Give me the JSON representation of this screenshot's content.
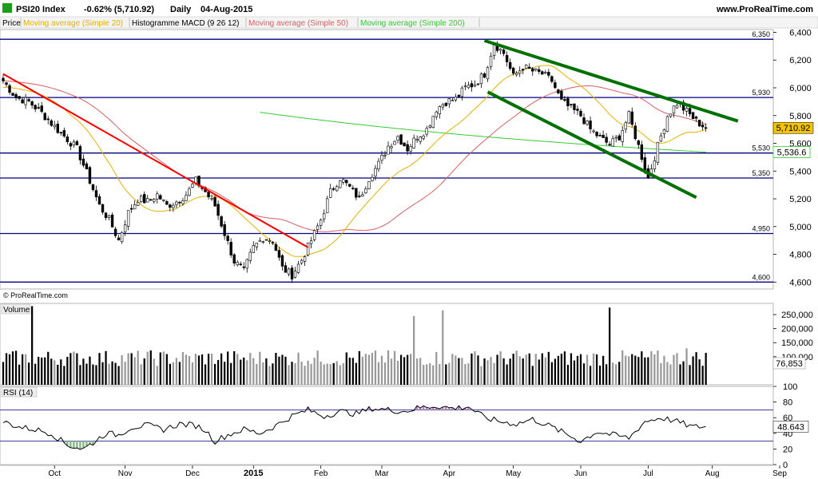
{
  "header": {
    "title": "PSI20 Index",
    "change": "-0.62% (5,710.92)",
    "period": "Daily",
    "date": "04-Aug-2015",
    "brand": "www.ProRealTime.com",
    "copyright": "© ProRealTime.com"
  },
  "indicators": [
    {
      "label": "Price",
      "color": "#000000"
    },
    {
      "label": "Moving average (Simple 20)",
      "color": "#e8b100"
    },
    {
      "label": "Histogramme MACD (9 26 12)",
      "color": "#000000"
    },
    {
      "label": "Moving average (Simple 50)",
      "color": "#d96060"
    },
    {
      "label": "Moving average (Simple 200)",
      "color": "#33cc33"
    }
  ],
  "colors": {
    "up_candle": "#ffffff",
    "down_candle": "#000000",
    "resistance_line": "#000080",
    "downtrend_line": "#ff0000",
    "channel_line": "#007000",
    "last_price_badge": "#f5c400"
  },
  "chart_data": [
    {
      "type": "candlestick",
      "panel": "price",
      "ylim": [
        4550,
        6420
      ],
      "yticks": [
        4600,
        4800,
        5000,
        5200,
        5400,
        5600,
        5800,
        6000,
        6200,
        6400
      ],
      "ytick_labels": [
        "4,600",
        "4,800",
        "5,000",
        "5,200",
        "5,400",
        "5,600",
        "5,800",
        "6,000",
        "6,200",
        "6,400"
      ],
      "x_labels": [
        "Oct",
        "Nov",
        "Dec",
        "2015",
        "Feb",
        "Mar",
        "Apr",
        "May",
        "Jun",
        "Jul",
        "Aug",
        "Sep"
      ],
      "x_label_bold": "2015",
      "last_price": 5710.92,
      "last_price_label": "5,710.92",
      "sma200_value": 5536.6,
      "sma200_label": "5,536.6",
      "close_anchors": [
        [
          0,
          6050
        ],
        [
          4,
          5930
        ],
        [
          8,
          5900
        ],
        [
          12,
          5820
        ],
        [
          16,
          5720
        ],
        [
          20,
          5630
        ],
        [
          23,
          5560
        ],
        [
          27,
          5330
        ],
        [
          30,
          5150
        ],
        [
          33,
          5050
        ],
        [
          36,
          4900
        ],
        [
          39,
          5100
        ],
        [
          42,
          5200
        ],
        [
          45,
          5180
        ],
        [
          48,
          5230
        ],
        [
          51,
          5150
        ],
        [
          54,
          5180
        ],
        [
          57,
          5230
        ],
        [
          60,
          5330
        ],
        [
          63,
          5250
        ],
        [
          66,
          5150
        ],
        [
          69,
          4950
        ],
        [
          72,
          4750
        ],
        [
          75,
          4680
        ],
        [
          78,
          4850
        ],
        [
          81,
          4920
        ],
        [
          84,
          4900
        ],
        [
          87,
          4700
        ],
        [
          90,
          4650
        ],
        [
          93,
          4760
        ],
        [
          96,
          4900
        ],
        [
          99,
          5050
        ],
        [
          102,
          5250
        ],
        [
          105,
          5350
        ],
        [
          108,
          5280
        ],
        [
          111,
          5200
        ],
        [
          114,
          5350
        ],
        [
          117,
          5450
        ],
        [
          120,
          5580
        ],
        [
          123,
          5650
        ],
        [
          126,
          5560
        ],
        [
          129,
          5650
        ],
        [
          132,
          5700
        ],
        [
          135,
          5850
        ],
        [
          138,
          5900
        ],
        [
          141,
          5920
        ],
        [
          144,
          6000
        ],
        [
          147,
          6030
        ],
        [
          150,
          6100
        ],
        [
          153,
          6320
        ],
        [
          156,
          6250
        ],
        [
          159,
          6080
        ],
        [
          162,
          6150
        ],
        [
          165,
          6120
        ],
        [
          168,
          6100
        ],
        [
          171,
          6050
        ],
        [
          174,
          5900
        ],
        [
          177,
          5850
        ],
        [
          180,
          5800
        ],
        [
          183,
          5700
        ],
        [
          186,
          5640
        ],
        [
          189,
          5590
        ],
        [
          192,
          5650
        ],
        [
          195,
          5800
        ],
        [
          198,
          5580
        ],
        [
          201,
          5350
        ],
        [
          204,
          5580
        ],
        [
          207,
          5800
        ],
        [
          210,
          5890
        ],
        [
          213,
          5830
        ],
        [
          216,
          5760
        ],
        [
          219,
          5711
        ]
      ],
      "horizontal_levels": [
        {
          "value": 6350,
          "label": "6,350"
        },
        {
          "value": 5930,
          "label": "5,930"
        },
        {
          "value": 5530,
          "label": "5,530"
        },
        {
          "value": 5350,
          "label": "5,350"
        },
        {
          "value": 4950,
          "label": "4,950"
        },
        {
          "value": 4600,
          "label": "4,600"
        }
      ],
      "trend_lines": [
        {
          "name": "downtrend",
          "from": [
            0,
            6100
          ],
          "to": [
            95,
            4850
          ]
        },
        {
          "name": "channel-upper",
          "from": [
            150,
            6340
          ],
          "to": [
            229,
            5760
          ]
        },
        {
          "name": "channel-lower",
          "from": [
            151,
            5970
          ],
          "to": [
            216,
            5210
          ]
        }
      ],
      "num_bars": 220,
      "x_domain": [
        0,
        240
      ]
    },
    {
      "type": "bar",
      "panel": "volume",
      "label": "Volume",
      "ylim": [
        0,
        290000
      ],
      "yticks": [
        100000,
        150000,
        200000,
        250000
      ],
      "ytick_labels": [
        "100,000",
        "150,000",
        "200,000",
        "250,000"
      ],
      "last_value_label": "76,853",
      "base_volume": 95000,
      "spikes": [
        [
          9,
          280000
        ],
        [
          128,
          245000
        ],
        [
          137,
          265000
        ],
        [
          189,
          275000
        ],
        [
          213,
          130000
        ]
      ]
    },
    {
      "type": "line",
      "panel": "rsi",
      "label": "RSI (14)",
      "ylim": [
        0,
        100
      ],
      "yticks": [
        0,
        20,
        40,
        60,
        80,
        100
      ],
      "ytick_labels": [
        "0",
        "20",
        "40",
        "60",
        "80",
        "100"
      ],
      "overbought": 70,
      "oversold": 30,
      "last_value": 48.643,
      "last_value_label": "48.643",
      "rsi_anchors": [
        [
          0,
          55
        ],
        [
          5,
          48
        ],
        [
          10,
          45
        ],
        [
          15,
          40
        ],
        [
          20,
          25
        ],
        [
          25,
          20
        ],
        [
          28,
          28
        ],
        [
          32,
          40
        ],
        [
          36,
          38
        ],
        [
          40,
          48
        ],
        [
          45,
          50
        ],
        [
          50,
          45
        ],
        [
          55,
          52
        ],
        [
          60,
          50
        ],
        [
          63,
          44
        ],
        [
          66,
          30
        ],
        [
          70,
          38
        ],
        [
          75,
          45
        ],
        [
          80,
          40
        ],
        [
          85,
          50
        ],
        [
          90,
          62
        ],
        [
          95,
          70
        ],
        [
          100,
          62
        ],
        [
          105,
          68
        ],
        [
          110,
          65
        ],
        [
          115,
          72
        ],
        [
          120,
          70
        ],
        [
          125,
          68
        ],
        [
          130,
          73
        ],
        [
          135,
          75
        ],
        [
          140,
          72
        ],
        [
          145,
          74
        ],
        [
          150,
          60
        ],
        [
          155,
          55
        ],
        [
          160,
          52
        ],
        [
          165,
          58
        ],
        [
          170,
          50
        ],
        [
          175,
          40
        ],
        [
          180,
          30
        ],
        [
          185,
          42
        ],
        [
          190,
          38
        ],
        [
          195,
          34
        ],
        [
          200,
          55
        ],
        [
          205,
          60
        ],
        [
          210,
          55
        ],
        [
          215,
          48
        ],
        [
          219,
          49
        ]
      ]
    }
  ]
}
